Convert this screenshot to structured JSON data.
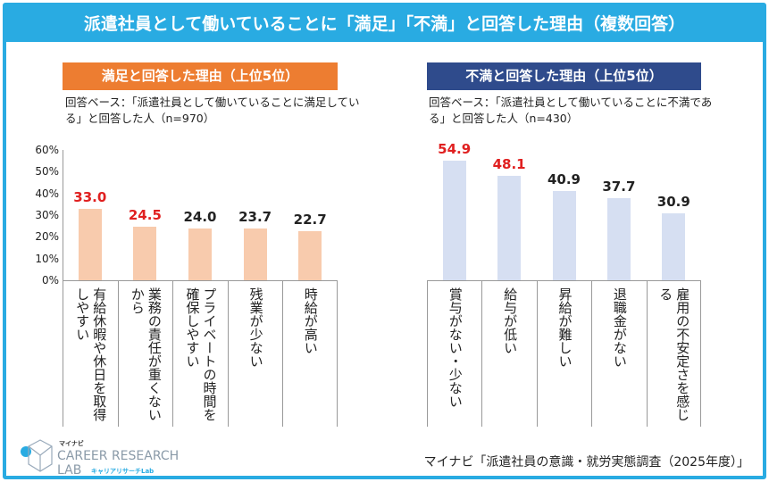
{
  "title": "派遣社員として働いていることに「満足」「不満」と回答した理由（複数回答）",
  "colors": {
    "frame": "#29ABE2",
    "left_header": "#ED7D31",
    "right_header": "#2F4B8C",
    "left_bar": "#F8CBAD",
    "right_bar": "#D6DFF2",
    "highlight": "#E02020"
  },
  "chart_data": [
    {
      "type": "bar",
      "title": "満足と回答した理由（上位5位）",
      "subtitle": "回答ベース：「派遣社員として働いていることに満足している」と回答した人（n=970）",
      "categories": [
        "有給休暇や休日を取得しやすい",
        "業務の責任が重くないから",
        "プライベートの時間を確保しやすい",
        "残業が少ない",
        "時給が高い"
      ],
      "values": [
        33.0,
        24.5,
        24.0,
        23.7,
        22.7
      ],
      "highlighted": [
        true,
        true,
        false,
        false,
        false
      ],
      "ylim": [
        0,
        60
      ],
      "yticks": [
        "0%",
        "10%",
        "20%",
        "30%",
        "40%",
        "50%",
        "60%"
      ],
      "grid": false
    },
    {
      "type": "bar",
      "title": "不満と回答した理由（上位5位）",
      "subtitle": "回答ベース：「派遣社員として働いていることに不満である」と回答した人（n=430）",
      "categories": [
        "賞与がない・少ない",
        "給与が低い",
        "昇給が難しい",
        "退職金がない",
        "雇用の不安定さを感じる"
      ],
      "values": [
        54.9,
        48.1,
        40.9,
        37.7,
        30.9
      ],
      "highlighted": [
        true,
        true,
        false,
        false,
        false
      ],
      "ylim": [
        0,
        60
      ],
      "grid": false
    }
  ],
  "logo": {
    "brand": "マイナビ",
    "name": "CAREER RESEARCH LAB",
    "sub": "キャリアリサーチLab"
  },
  "source": "マイナビ「派遣社員の意識・就労実態調査（2025年度）」"
}
